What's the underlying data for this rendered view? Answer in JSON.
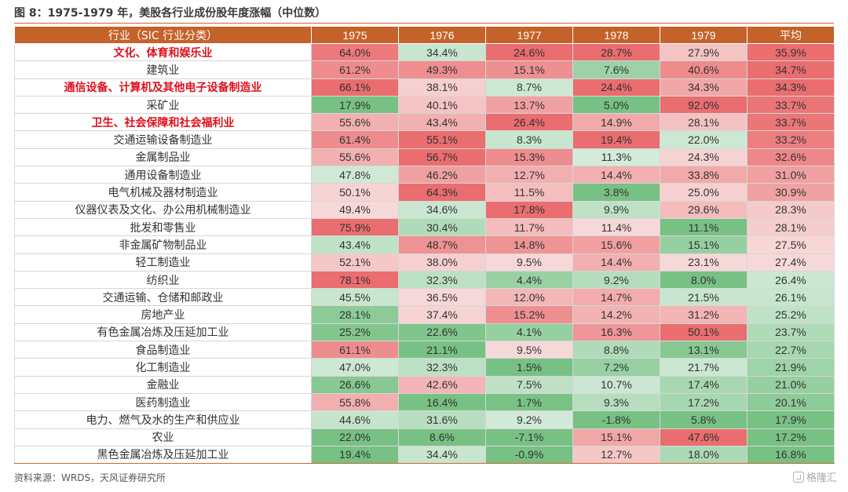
{
  "title": "图 8：1975-1979 年，美股各行业成份股年度涨幅（中位数）",
  "source": "资料来源：WRDS，天风证券研究所",
  "watermark": "格隆汇",
  "colors": {
    "header_bg": "#c5622a",
    "highlight_text": "#e0101b",
    "strong_red": "#ea6d6f",
    "light_red": "#f7d8d8",
    "light_green": "#d5ecdb",
    "strong_green": "#77c184"
  },
  "chart_data": {
    "type": "table",
    "columns": [
      "行业（SIC 行业分类）",
      "1975",
      "1976",
      "1977",
      "1978",
      "1979",
      "平均"
    ],
    "rows": [
      {
        "industry": "文化、体育和娱乐业",
        "highlight": true,
        "values": [
          "64.0%",
          "34.4%",
          "24.6%",
          "28.7%",
          "27.9%",
          "35.9%"
        ]
      },
      {
        "industry": "建筑业",
        "highlight": false,
        "values": [
          "61.2%",
          "49.3%",
          "15.1%",
          "7.6%",
          "40.6%",
          "34.7%"
        ]
      },
      {
        "industry": "通信设备、计算机及其他电子设备制造业",
        "highlight": true,
        "values": [
          "66.1%",
          "38.1%",
          "8.7%",
          "24.4%",
          "34.3%",
          "34.3%"
        ]
      },
      {
        "industry": "采矿业",
        "highlight": false,
        "values": [
          "17.9%",
          "40.1%",
          "13.7%",
          "5.0%",
          "92.0%",
          "33.7%"
        ]
      },
      {
        "industry": "卫生、社会保障和社会福利业",
        "highlight": true,
        "values": [
          "55.6%",
          "43.4%",
          "26.4%",
          "14.9%",
          "28.1%",
          "33.7%"
        ]
      },
      {
        "industry": "交通运输设备制造业",
        "highlight": false,
        "values": [
          "61.4%",
          "55.1%",
          "8.3%",
          "19.4%",
          "22.0%",
          "33.2%"
        ]
      },
      {
        "industry": "金属制品业",
        "highlight": false,
        "values": [
          "55.6%",
          "56.7%",
          "15.3%",
          "11.3%",
          "24.3%",
          "32.6%"
        ]
      },
      {
        "industry": "通用设备制造业",
        "highlight": false,
        "values": [
          "47.8%",
          "46.2%",
          "12.7%",
          "14.4%",
          "33.8%",
          "31.0%"
        ]
      },
      {
        "industry": "电气机械及器材制造业",
        "highlight": false,
        "values": [
          "50.1%",
          "64.3%",
          "11.5%",
          "3.8%",
          "25.0%",
          "30.9%"
        ]
      },
      {
        "industry": "仪器仪表及文化、办公用机械制造业",
        "highlight": false,
        "values": [
          "49.4%",
          "34.6%",
          "17.8%",
          "9.9%",
          "29.6%",
          "28.3%"
        ]
      },
      {
        "industry": "批发和零售业",
        "highlight": false,
        "values": [
          "75.9%",
          "30.4%",
          "11.7%",
          "11.4%",
          "11.1%",
          "28.1%"
        ]
      },
      {
        "industry": "非金属矿物制品业",
        "highlight": false,
        "values": [
          "43.4%",
          "48.7%",
          "14.8%",
          "15.6%",
          "15.1%",
          "27.5%"
        ]
      },
      {
        "industry": "轻工制造业",
        "highlight": false,
        "values": [
          "52.1%",
          "38.0%",
          "9.5%",
          "14.4%",
          "23.1%",
          "27.4%"
        ]
      },
      {
        "industry": "纺织业",
        "highlight": false,
        "values": [
          "78.1%",
          "32.3%",
          "4.4%",
          "9.2%",
          "8.0%",
          "26.4%"
        ]
      },
      {
        "industry": "交通运输、仓储和邮政业",
        "highlight": false,
        "values": [
          "45.5%",
          "36.5%",
          "12.0%",
          "14.7%",
          "21.5%",
          "26.1%"
        ]
      },
      {
        "industry": "房地产业",
        "highlight": false,
        "values": [
          "28.1%",
          "37.4%",
          "15.2%",
          "14.2%",
          "31.2%",
          "25.2%"
        ]
      },
      {
        "industry": "有色金属冶炼及压延加工业",
        "highlight": false,
        "values": [
          "25.2%",
          "22.6%",
          "4.1%",
          "16.3%",
          "50.1%",
          "23.7%"
        ]
      },
      {
        "industry": "食品制造业",
        "highlight": false,
        "values": [
          "61.1%",
          "21.1%",
          "9.5%",
          "8.8%",
          "13.1%",
          "22.7%"
        ]
      },
      {
        "industry": "化工制造业",
        "highlight": false,
        "values": [
          "47.0%",
          "32.3%",
          "1.5%",
          "7.2%",
          "21.7%",
          "21.9%"
        ]
      },
      {
        "industry": "金融业",
        "highlight": false,
        "values": [
          "26.6%",
          "42.6%",
          "7.5%",
          "10.7%",
          "17.4%",
          "21.0%"
        ]
      },
      {
        "industry": "医药制造业",
        "highlight": false,
        "values": [
          "55.8%",
          "16.4%",
          "1.7%",
          "9.3%",
          "17.2%",
          "20.1%"
        ]
      },
      {
        "industry": "电力、燃气及水的生产和供应业",
        "highlight": false,
        "values": [
          "44.6%",
          "31.6%",
          "9.2%",
          "-1.8%",
          "5.8%",
          "17.9%"
        ]
      },
      {
        "industry": "农业",
        "highlight": false,
        "values": [
          "22.0%",
          "8.6%",
          "-7.1%",
          "15.1%",
          "47.6%",
          "17.2%"
        ]
      },
      {
        "industry": "黑色金属冶炼及压延加工业",
        "highlight": false,
        "values": [
          "19.4%",
          "34.4%",
          "-0.9%",
          "12.7%",
          "18.0%",
          "16.8%"
        ]
      }
    ]
  }
}
